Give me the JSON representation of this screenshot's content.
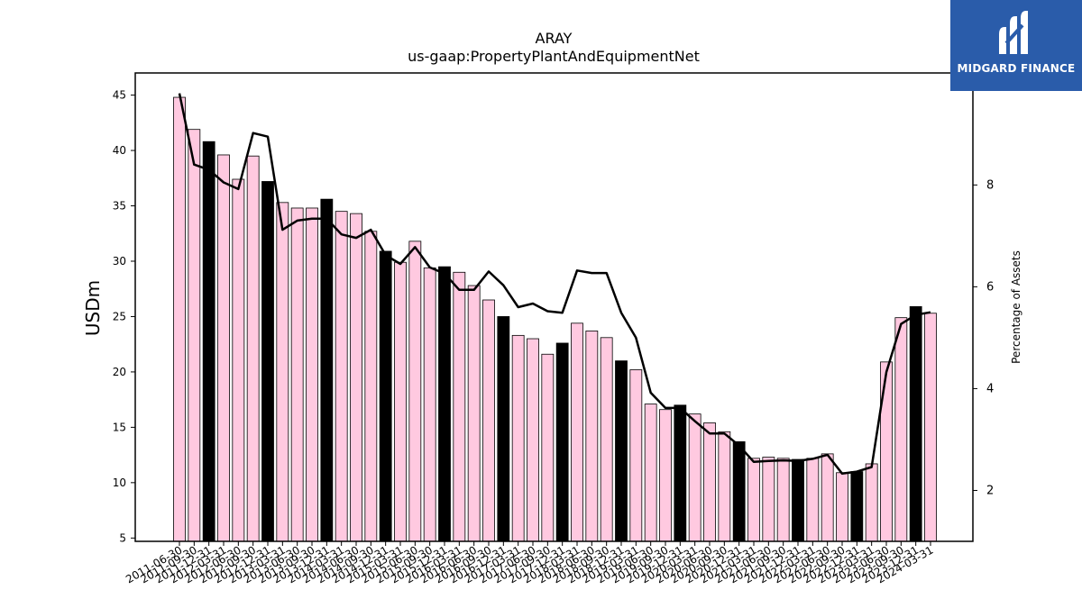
{
  "brand": {
    "name": "MIDGARD FINANCE",
    "bg_color": "#2a5caa"
  },
  "chart_data": {
    "type": "bar",
    "title": "ARAY",
    "subtitle": "us-gaap:PropertyPlantAndEquipmentNet",
    "ylabel": "USDm",
    "y2label": "Percentage of Assets",
    "ylim": [
      4.7,
      47
    ],
    "y2lim": [
      1.0,
      10.2
    ],
    "yticks": [
      5,
      10,
      15,
      20,
      25,
      30,
      35,
      40,
      45
    ],
    "y2ticks": [
      2,
      4,
      6,
      8
    ],
    "categories": [
      "2011-06-30",
      "2011-09-30",
      "2011-12-31",
      "2012-03-31",
      "2012-06-30",
      "2012-09-30",
      "2012-12-31",
      "2013-03-31",
      "2013-06-30",
      "2013-09-30",
      "2013-12-31",
      "2014-03-31",
      "2014-06-30",
      "2014-09-30",
      "2014-12-31",
      "2015-03-31",
      "2015-06-30",
      "2015-09-30",
      "2015-12-31",
      "2016-03-31",
      "2016-06-30",
      "2016-09-30",
      "2016-12-31",
      "2017-03-31",
      "2017-06-30",
      "2017-09-30",
      "2017-12-31",
      "2018-03-31",
      "2018-06-30",
      "2018-09-30",
      "2018-12-31",
      "2019-03-31",
      "2019-06-30",
      "2019-09-30",
      "2019-12-31",
      "2020-03-31",
      "2020-06-30",
      "2020-09-30",
      "2020-12-31",
      "2021-03-31",
      "2021-06-30",
      "2021-09-30",
      "2021-12-31",
      "2022-03-31",
      "2022-06-30",
      "2022-09-30",
      "2022-12-31",
      "2023-03-31",
      "2023-06-30",
      "2023-09-30",
      "2023-12-31",
      "2024-03-31"
    ],
    "xtick_labels": [
      "2011-06-30",
      "2011-09-30",
      "2011-12-31",
      "2012-03-31",
      "2012-06-30",
      "2012-09-30",
      "2012-12-31",
      "2013-03-31",
      "2013-06-30",
      "2013-09-30",
      "2013-12-31",
      "2014-03-31",
      "2014-06-30",
      "2014-09-30",
      "2014-12-31",
      "2015-03-31",
      "2015-06-30",
      "2015-09-30",
      "2015-12-31",
      "2016-03-31",
      "2016-06-30",
      "2016-09-30",
      "2016-12-31",
      "2017-03-31",
      "2017-06-30",
      "2017-09-30",
      "2017-12-31",
      "2018-03-31",
      "2018-06-30",
      "2018-09-30",
      "2018-12-31",
      "2019-03-31",
      "2019-06-30",
      "2019-09-30",
      "2019-12-31",
      "2020-03-31",
      "2020-06-30",
      "2020-09-30",
      "2020-12-31",
      "2021-03-31",
      "2021-06-30",
      "2021-09-30",
      "2021-12-31",
      "2022-03-31",
      "2022-06-30",
      "2022-09-30",
      "2022-12-31",
      "2023-03-31",
      "2023-06-30",
      "2023-09-30",
      "2023-12-31",
      "2024-03-31"
    ],
    "series": [
      {
        "type": "bar",
        "values": [
          44.8,
          41.9,
          40.8,
          39.6,
          37.4,
          39.5,
          37.2,
          35.3,
          34.8,
          34.8,
          35.6,
          34.5,
          34.3,
          32.7,
          30.9,
          29.9,
          31.8,
          29.4,
          29.5,
          29.0,
          27.8,
          26.5,
          25.0,
          23.3,
          23.0,
          21.6,
          22.6,
          24.4,
          23.7,
          23.1,
          21.0,
          20.2,
          17.1,
          16.6,
          17.0,
          16.2,
          15.4,
          14.6,
          13.7,
          12.2,
          12.3,
          12.2,
          12.1,
          12.2,
          12.6,
          10.9,
          11.0,
          11.7,
          20.9,
          24.9,
          25.9,
          25.3
        ],
        "colors": [
          "#ffc9e0",
          "#ffc9e0",
          "#000000",
          "#ffc9e0",
          "#ffc9e0",
          "#ffc9e0",
          "#000000",
          "#ffc9e0",
          "#ffc9e0",
          "#ffc9e0",
          "#000000",
          "#ffc9e0",
          "#ffc9e0",
          "#ffc9e0",
          "#000000",
          "#ffc9e0",
          "#ffc9e0",
          "#ffc9e0",
          "#000000",
          "#ffc9e0",
          "#ffc9e0",
          "#ffc9e0",
          "#000000",
          "#ffc9e0",
          "#ffc9e0",
          "#ffc9e0",
          "#000000",
          "#ffc9e0",
          "#ffc9e0",
          "#ffc9e0",
          "#000000",
          "#ffc9e0",
          "#ffc9e0",
          "#ffc9e0",
          "#000000",
          "#ffc9e0",
          "#ffc9e0",
          "#ffc9e0",
          "#000000",
          "#ffc9e0",
          "#ffc9e0",
          "#ffc9e0",
          "#000000",
          "#ffc9e0",
          "#ffc9e0",
          "#ffc9e0",
          "#000000",
          "#ffc9e0",
          "#ffc9e0",
          "#ffc9e0",
          "#000000",
          "#ffc9e0"
        ]
      },
      {
        "type": "line",
        "axis": "right",
        "color": "#000000",
        "values": [
          9.8,
          8.4,
          8.3,
          8.05,
          7.92,
          9.02,
          8.95,
          7.12,
          7.3,
          7.34,
          7.34,
          7.03,
          6.96,
          7.12,
          6.62,
          6.45,
          6.78,
          6.38,
          6.26,
          5.94,
          5.94,
          6.3,
          6.03,
          5.6,
          5.67,
          5.52,
          5.49,
          6.32,
          6.27,
          6.27,
          5.49,
          5.0,
          3.92,
          3.62,
          3.62,
          3.36,
          3.12,
          3.12,
          2.88,
          2.56,
          2.58,
          2.59,
          2.58,
          2.62,
          2.7,
          2.33,
          2.37,
          2.46,
          4.32,
          5.27,
          5.45,
          5.5
        ]
      }
    ],
    "grid": false,
    "legend": "none"
  }
}
